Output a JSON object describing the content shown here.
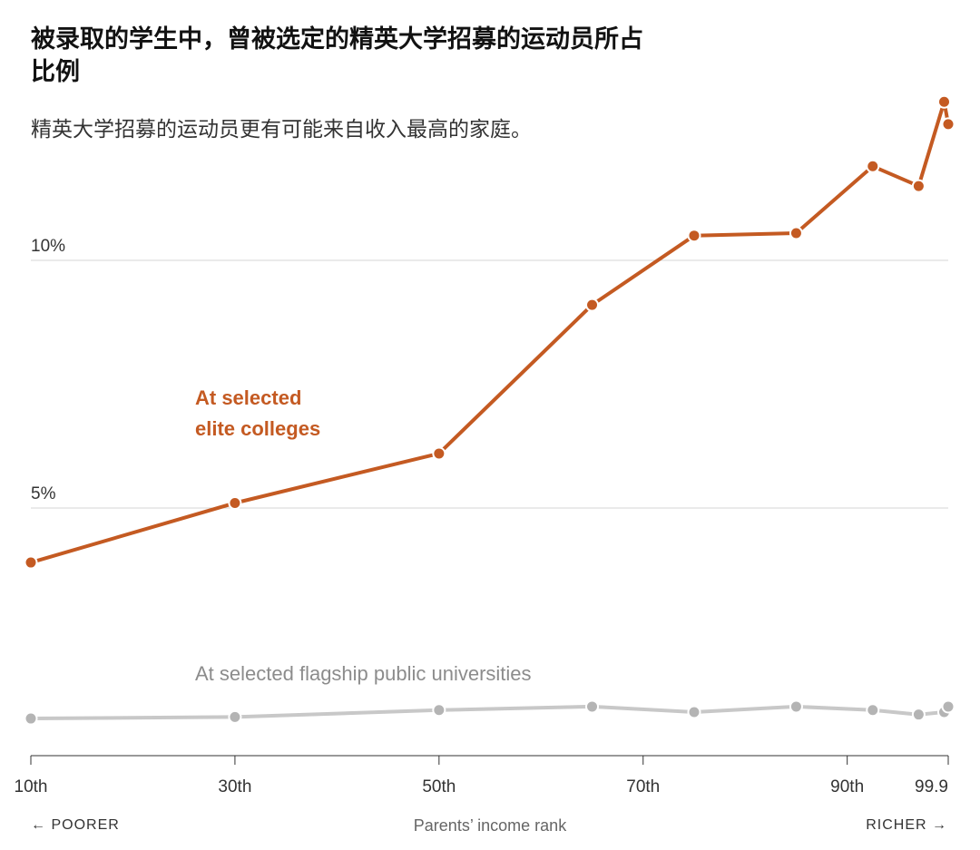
{
  "title": "被录取的学生中，曾被选定的精英大学招募的运动员所占比例",
  "subtitle": "精英大学招募的运动员更有可能来自收入最高的家庭。",
  "chart_data": {
    "type": "line",
    "title": "被录取的学生中，曾被选定的精英大学招募的运动员所占比例",
    "subtitle": "精英大学招募的运动员更有可能来自收入最高的家庭。",
    "xlabel": "Parents’ income rank",
    "ylabel": "",
    "x_left_label": "← POORER",
    "x_right_label": "RICHER →",
    "xlim": [
      10,
      99.9
    ],
    "ylim": [
      0,
      13.5
    ],
    "x_ticks": [
      {
        "value": 10,
        "label": "10th"
      },
      {
        "value": 30,
        "label": "30th"
      },
      {
        "value": 50,
        "label": "50th"
      },
      {
        "value": 70,
        "label": "70th"
      },
      {
        "value": 90,
        "label": "90th"
      },
      {
        "value": 99.9,
        "label": "99.9"
      }
    ],
    "y_ticks": [
      {
        "value": 5,
        "label": "5%"
      },
      {
        "value": 10,
        "label": "10%"
      }
    ],
    "grid": true,
    "series": [
      {
        "name": "At selected elite colleges",
        "label_lines": [
          "At selected",
          "elite colleges"
        ],
        "color": "#c45a22",
        "points": [
          {
            "x": 10,
            "y": 3.9
          },
          {
            "x": 30,
            "y": 5.1
          },
          {
            "x": 50,
            "y": 6.1
          },
          {
            "x": 65,
            "y": 9.1
          },
          {
            "x": 75,
            "y": 10.5
          },
          {
            "x": 85,
            "y": 10.55
          },
          {
            "x": 92.5,
            "y": 11.9
          },
          {
            "x": 97,
            "y": 11.5
          },
          {
            "x": 99.5,
            "y": 13.2
          },
          {
            "x": 99.9,
            "y": 12.75
          }
        ]
      },
      {
        "name": "At selected flagship public universities",
        "label_lines": [
          "At selected flagship public universities"
        ],
        "color": "#c8c8c8",
        "points": [
          {
            "x": 10,
            "y": 0.75
          },
          {
            "x": 30,
            "y": 0.78
          },
          {
            "x": 50,
            "y": 0.92
          },
          {
            "x": 65,
            "y": 0.99
          },
          {
            "x": 75,
            "y": 0.88
          },
          {
            "x": 85,
            "y": 0.99
          },
          {
            "x": 92.5,
            "y": 0.92
          },
          {
            "x": 97,
            "y": 0.83
          },
          {
            "x": 99.5,
            "y": 0.88
          },
          {
            "x": 99.9,
            "y": 0.99
          }
        ]
      }
    ]
  }
}
